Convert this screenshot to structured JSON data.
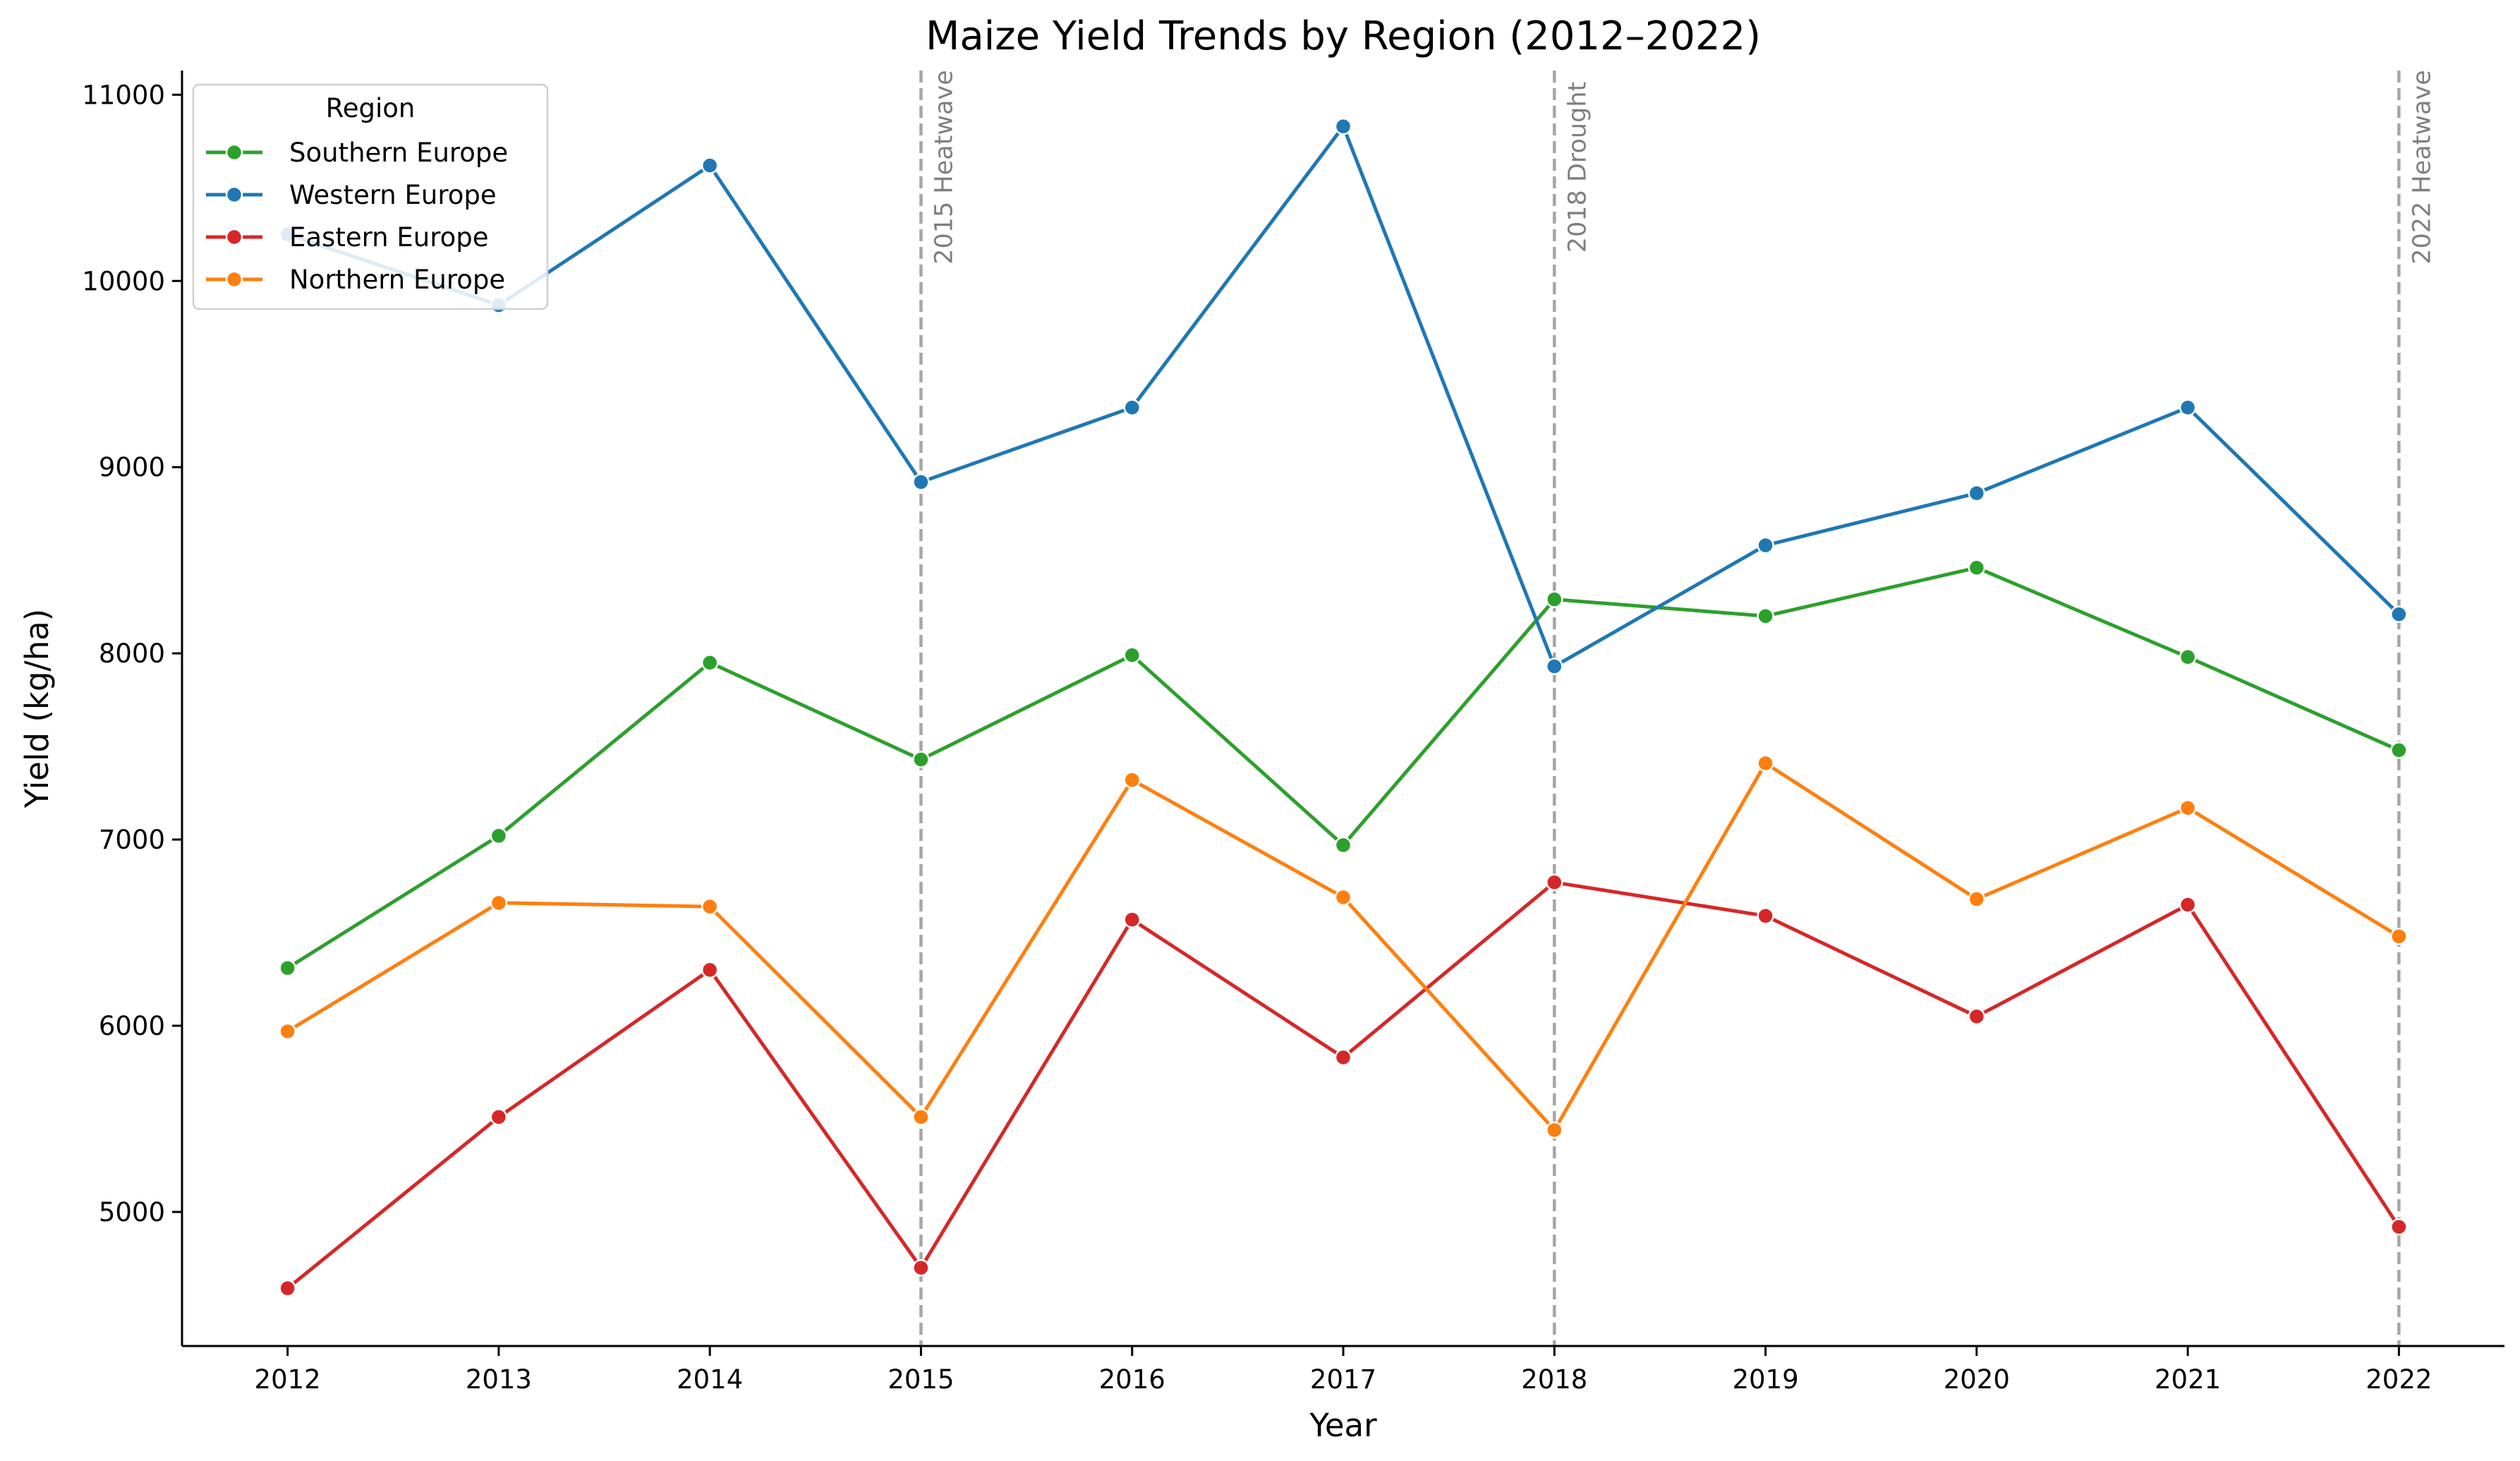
{
  "chart_data": {
    "type": "line",
    "title": "Maize Yield Trends by Region (2012–2022)",
    "xlabel": "Year",
    "ylabel": "Yield (kg/ha)",
    "x": [
      2012,
      2013,
      2014,
      2015,
      2016,
      2017,
      2018,
      2019,
      2020,
      2021,
      2022
    ],
    "x_ticks": [
      "2012",
      "2013",
      "2014",
      "2015",
      "2016",
      "2017",
      "2018",
      "2019",
      "2020",
      "2021",
      "2022"
    ],
    "y_ticks": [
      5000,
      6000,
      7000,
      8000,
      9000,
      10000,
      11000
    ],
    "y_tick_labels": [
      "5000",
      "6000",
      "7000",
      "8000",
      "9000",
      "10000",
      "11000"
    ],
    "xlim": [
      2011.5,
      2022.5
    ],
    "ylim": [
      4280,
      11130
    ],
    "grid": false,
    "legend": {
      "title": "Region",
      "placement": "top-left"
    },
    "series": [
      {
        "name": "Southern Europe",
        "color": "#2ca02c",
        "values": [
          6310,
          7020,
          7950,
          7430,
          7990,
          6970,
          8290,
          8200,
          8460,
          7980,
          7480
        ]
      },
      {
        "name": "Western Europe",
        "color": "#1f77b4",
        "values": [
          10250,
          9870,
          10620,
          8920,
          9320,
          10830,
          7930,
          8580,
          8860,
          9320,
          8210
        ]
      },
      {
        "name": "Eastern Europe",
        "color": "#d62728",
        "values": [
          4590,
          5510,
          6300,
          4700,
          6570,
          5830,
          6770,
          6590,
          6050,
          6650,
          4920
        ]
      },
      {
        "name": "Northern Europe",
        "color": "#ff7f0e",
        "values": [
          5970,
          6660,
          6640,
          5510,
          7320,
          6690,
          5440,
          7410,
          6680,
          7170,
          6480
        ]
      }
    ],
    "annotations": [
      {
        "x": 2015,
        "label": "2015 Heatwave"
      },
      {
        "x": 2018,
        "label": "2018 Drought"
      },
      {
        "x": 2022,
        "label": "2022 Heatwave"
      }
    ]
  }
}
